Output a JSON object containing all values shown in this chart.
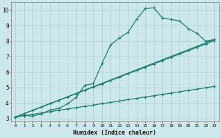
{
  "xlabel": "Humidex (Indice chaleur)",
  "bg_color": "#cce8ea",
  "grid_color": "#aacccc",
  "line_color": "#1a7a6e",
  "xlim": [
    -0.5,
    23.5
  ],
  "ylim": [
    2.8,
    10.5
  ],
  "x_ticks": [
    0,
    1,
    2,
    3,
    4,
    5,
    6,
    7,
    8,
    9,
    10,
    11,
    12,
    13,
    14,
    15,
    16,
    17,
    18,
    19,
    20,
    21,
    22,
    23
  ],
  "y_ticks": [
    3,
    4,
    5,
    6,
    7,
    8,
    9,
    10
  ],
  "main_x": [
    0,
    1,
    2,
    3,
    4,
    5,
    6,
    7,
    8,
    9,
    10,
    11,
    12,
    13,
    14,
    15,
    16,
    17,
    18,
    19,
    20,
    21,
    22,
    23
  ],
  "main_y": [
    3.1,
    3.2,
    3.15,
    3.3,
    3.55,
    3.65,
    3.95,
    4.35,
    5.15,
    5.25,
    6.55,
    7.75,
    8.2,
    8.55,
    9.4,
    10.1,
    10.15,
    9.5,
    9.4,
    9.3,
    8.8,
    8.5,
    8.0,
    8.1
  ],
  "line1_x": [
    0,
    23
  ],
  "line1_y": [
    3.1,
    8.1
  ],
  "line2_x": [
    0,
    23
  ],
  "line2_y": [
    3.1,
    8.1
  ],
  "reg1_x": [
    0,
    1,
    2,
    3,
    4,
    5,
    6,
    7,
    8,
    9,
    10,
    11,
    12,
    13,
    14,
    15,
    16,
    17,
    18,
    19,
    20,
    21,
    22,
    23
  ],
  "reg1_y": [
    3.1,
    3.32,
    3.53,
    3.74,
    3.96,
    4.17,
    4.39,
    4.6,
    4.82,
    5.03,
    5.24,
    5.46,
    5.67,
    5.89,
    6.1,
    6.31,
    6.53,
    6.74,
    6.96,
    7.17,
    7.38,
    7.6,
    7.81,
    8.03
  ],
  "reg2_x": [
    0,
    1,
    2,
    3,
    4,
    5,
    6,
    7,
    8,
    9,
    10,
    11,
    12,
    13,
    14,
    15,
    16,
    17,
    18,
    19,
    20,
    21,
    22,
    23
  ],
  "reg2_y": [
    3.1,
    3.19,
    3.27,
    3.36,
    3.44,
    3.53,
    3.62,
    3.7,
    3.79,
    3.87,
    3.96,
    4.04,
    4.13,
    4.22,
    4.3,
    4.39,
    4.47,
    4.56,
    4.64,
    4.73,
    4.82,
    4.9,
    4.99,
    5.07
  ]
}
